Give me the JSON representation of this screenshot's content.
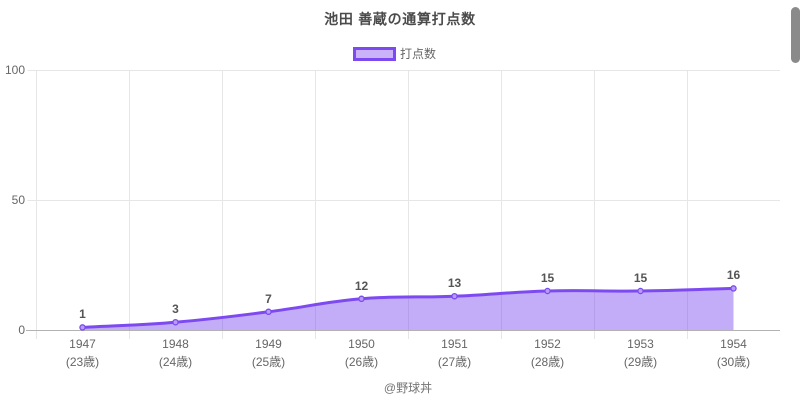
{
  "page": {
    "background": "#ffffff",
    "footer_credit": "@野球丼"
  },
  "chart_data": {
    "type": "area",
    "title": "池田 善蔵の通算打点数",
    "legend": [
      "打点数"
    ],
    "legend_position": "top",
    "categories": [
      "1947",
      "1948",
      "1949",
      "1950",
      "1951",
      "1952",
      "1953",
      "1954"
    ],
    "category_sublabels": [
      "(23歳)",
      "(24歳)",
      "(25歳)",
      "(26歳)",
      "(27歳)",
      "(28歳)",
      "(29歳)",
      "(30歳)"
    ],
    "series": [
      {
        "name": "打点数",
        "values": [
          1,
          3,
          7,
          12,
          13,
          15,
          15,
          16
        ]
      }
    ],
    "xlabel": "",
    "ylabel": "",
    "ylim": [
      0,
      100
    ],
    "yticks": [
      0,
      50,
      100
    ],
    "grid": true,
    "point_labels_visible": true,
    "colors": {
      "line": "#7d49f0",
      "fill": "#7d49f0",
      "fill_opacity": 0.45,
      "point_fill": "#b69cf6",
      "grid": "#e6e6e6",
      "axis_line": "#b3b3b3",
      "title_text": "#4b4b4b",
      "tick_text": "#666666",
      "value_text": "#555555"
    }
  },
  "scrollbar": {
    "orientation": "vertical",
    "thumb_color": "#8a8a8a"
  }
}
